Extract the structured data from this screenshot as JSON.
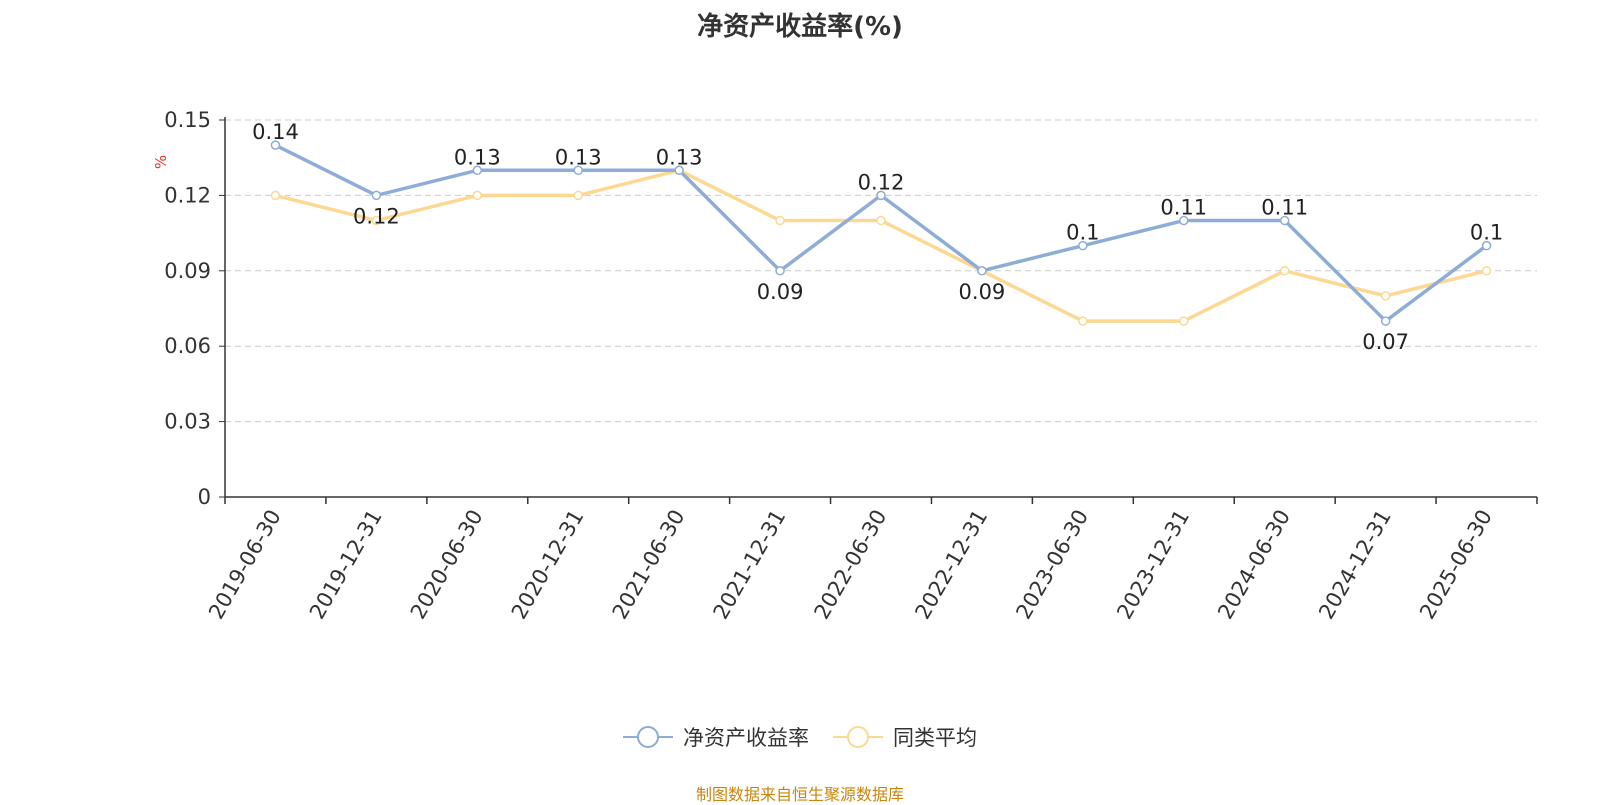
{
  "chart_data": {
    "type": "line",
    "title": "净资产收益率(%)",
    "ylabel": "%",
    "xlabel": "",
    "categories": [
      "2019-06-30",
      "2019-12-31",
      "2020-06-30",
      "2020-12-31",
      "2021-06-30",
      "2021-12-31",
      "2022-06-30",
      "2022-12-31",
      "2023-06-30",
      "2023-12-31",
      "2024-06-30",
      "2024-12-31",
      "2025-06-30"
    ],
    "series": [
      {
        "name": "净资产收益率",
        "color": "#8eacd8",
        "values": [
          0.14,
          0.12,
          0.13,
          0.13,
          0.13,
          0.09,
          0.12,
          0.09,
          0.1,
          0.11,
          0.11,
          0.07,
          0.1
        ],
        "labels": [
          "0.14",
          "0.12",
          "0.13",
          "0.13",
          "0.13",
          "0.09",
          "0.12",
          "0.09",
          "0.1",
          "0.11",
          "0.11",
          "0.07",
          "0.1"
        ],
        "label_position": [
          "above",
          "below",
          "above",
          "above",
          "above",
          "below",
          "above",
          "below",
          "above",
          "above",
          "above",
          "below",
          "above"
        ]
      },
      {
        "name": "同类平均",
        "color": "#fdd893",
        "values": [
          0.12,
          0.11,
          0.12,
          0.12,
          0.13,
          0.11,
          0.11,
          0.09,
          0.07,
          0.07,
          0.09,
          0.08,
          0.09
        ]
      }
    ],
    "ylim": [
      0,
      0.15
    ],
    "yticks": [
      "0",
      "0.03",
      "0.06",
      "0.09",
      "0.12",
      "0.15"
    ],
    "grid": true,
    "legend_position": "bottom-center"
  },
  "source_note": "制图数据来自恒生聚源数据库"
}
